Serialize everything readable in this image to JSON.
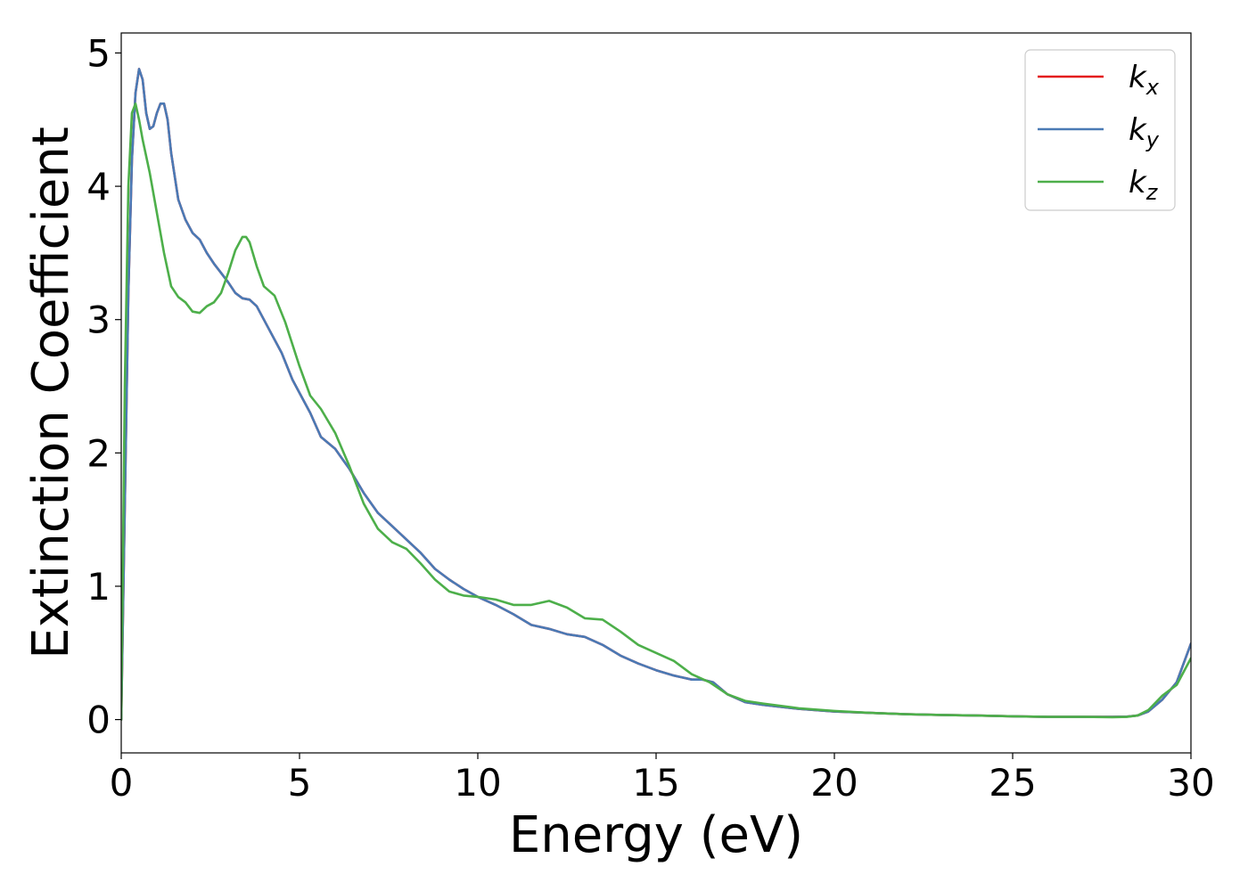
{
  "chart_data": {
    "type": "line",
    "xlabel": "Energy (eV)",
    "ylabel": "Extinction Coefficient",
    "xlim": [
      0,
      30
    ],
    "ylim": [
      -0.25,
      5.15
    ],
    "xticks": [
      "0",
      "5",
      "10",
      "15",
      "20",
      "25",
      "30"
    ],
    "yticks": [
      "0",
      "1",
      "2",
      "3",
      "4",
      "5"
    ],
    "grid": false,
    "legend_position": "top-right",
    "series": [
      {
        "name": "k",
        "sub": "x",
        "color": "#e41a1c",
        "x": [
          0,
          0.1,
          0.2,
          0.3,
          0.4,
          0.5,
          0.6,
          0.7,
          0.8,
          0.9,
          1.0,
          1.1,
          1.2,
          1.3,
          1.4,
          1.6,
          1.8,
          2.0,
          2.2,
          2.4,
          2.6,
          2.8,
          3.0,
          3.2,
          3.4,
          3.6,
          3.8,
          4.0,
          4.2,
          4.5,
          4.8,
          5.0,
          5.3,
          5.6,
          6.0,
          6.4,
          6.8,
          7.2,
          7.6,
          8.0,
          8.4,
          8.8,
          9.2,
          9.6,
          10.0,
          10.5,
          11.0,
          11.5,
          12.0,
          12.5,
          13.0,
          13.5,
          14.0,
          14.5,
          15.0,
          15.5,
          16.0,
          16.3,
          16.6,
          17.0,
          17.5,
          18.0,
          19.0,
          20.0,
          21.0,
          22.0,
          23.0,
          24.0,
          25.0,
          26.0,
          27.0,
          27.8,
          28.2,
          28.5,
          28.8,
          29.2,
          29.6,
          30.0
        ],
        "values": [
          0,
          1.6,
          3.2,
          4.2,
          4.7,
          4.88,
          4.8,
          4.55,
          4.43,
          4.45,
          4.55,
          4.62,
          4.62,
          4.5,
          4.25,
          3.9,
          3.75,
          3.65,
          3.6,
          3.5,
          3.42,
          3.35,
          3.28,
          3.2,
          3.16,
          3.15,
          3.1,
          3.0,
          2.9,
          2.75,
          2.55,
          2.45,
          2.3,
          2.12,
          2.03,
          1.88,
          1.7,
          1.55,
          1.45,
          1.35,
          1.25,
          1.13,
          1.05,
          0.98,
          0.92,
          0.86,
          0.79,
          0.71,
          0.68,
          0.64,
          0.62,
          0.56,
          0.48,
          0.42,
          0.37,
          0.33,
          0.3,
          0.3,
          0.28,
          0.19,
          0.13,
          0.11,
          0.08,
          0.06,
          0.05,
          0.04,
          0.035,
          0.03,
          0.025,
          0.02,
          0.02,
          0.02,
          0.022,
          0.03,
          0.06,
          0.15,
          0.28,
          0.57
        ]
      },
      {
        "name": "k",
        "sub": "y",
        "color": "#4a7ab5",
        "x": [
          0,
          0.1,
          0.2,
          0.3,
          0.4,
          0.5,
          0.6,
          0.7,
          0.8,
          0.9,
          1.0,
          1.1,
          1.2,
          1.3,
          1.4,
          1.6,
          1.8,
          2.0,
          2.2,
          2.4,
          2.6,
          2.8,
          3.0,
          3.2,
          3.4,
          3.6,
          3.8,
          4.0,
          4.2,
          4.5,
          4.8,
          5.0,
          5.3,
          5.6,
          6.0,
          6.4,
          6.8,
          7.2,
          7.6,
          8.0,
          8.4,
          8.8,
          9.2,
          9.6,
          10.0,
          10.5,
          11.0,
          11.5,
          12.0,
          12.5,
          13.0,
          13.5,
          14.0,
          14.5,
          15.0,
          15.5,
          16.0,
          16.3,
          16.6,
          17.0,
          17.5,
          18.0,
          19.0,
          20.0,
          21.0,
          22.0,
          23.0,
          24.0,
          25.0,
          26.0,
          27.0,
          27.8,
          28.2,
          28.5,
          28.8,
          29.2,
          29.6,
          30.0
        ],
        "values": [
          0,
          1.6,
          3.2,
          4.2,
          4.7,
          4.88,
          4.8,
          4.55,
          4.43,
          4.45,
          4.55,
          4.62,
          4.62,
          4.5,
          4.25,
          3.9,
          3.75,
          3.65,
          3.6,
          3.5,
          3.42,
          3.35,
          3.28,
          3.2,
          3.16,
          3.15,
          3.1,
          3.0,
          2.9,
          2.75,
          2.55,
          2.45,
          2.3,
          2.12,
          2.03,
          1.88,
          1.7,
          1.55,
          1.45,
          1.35,
          1.25,
          1.13,
          1.05,
          0.98,
          0.92,
          0.86,
          0.79,
          0.71,
          0.68,
          0.64,
          0.62,
          0.56,
          0.48,
          0.42,
          0.37,
          0.33,
          0.3,
          0.3,
          0.28,
          0.19,
          0.13,
          0.11,
          0.08,
          0.06,
          0.05,
          0.04,
          0.035,
          0.03,
          0.025,
          0.02,
          0.02,
          0.02,
          0.022,
          0.03,
          0.06,
          0.15,
          0.28,
          0.57
        ]
      },
      {
        "name": "k",
        "sub": "z",
        "color": "#4daf4a",
        "x": [
          0,
          0.1,
          0.2,
          0.3,
          0.4,
          0.5,
          0.6,
          0.8,
          1.0,
          1.2,
          1.4,
          1.6,
          1.8,
          2.0,
          2.2,
          2.4,
          2.6,
          2.8,
          3.0,
          3.2,
          3.4,
          3.5,
          3.6,
          3.8,
          4.0,
          4.3,
          4.6,
          5.0,
          5.3,
          5.6,
          6.0,
          6.4,
          6.8,
          7.2,
          7.6,
          8.0,
          8.4,
          8.8,
          9.2,
          9.6,
          10.0,
          10.5,
          11.0,
          11.5,
          12.0,
          12.5,
          13.0,
          13.5,
          14.0,
          14.5,
          15.0,
          15.5,
          16.0,
          16.5,
          17.0,
          17.5,
          18.0,
          19.0,
          20.0,
          21.0,
          22.0,
          23.0,
          24.0,
          25.0,
          26.0,
          27.0,
          27.8,
          28.2,
          28.5,
          28.8,
          29.2,
          29.6,
          30.0
        ],
        "values": [
          0,
          2.5,
          4.0,
          4.55,
          4.62,
          4.5,
          4.35,
          4.1,
          3.8,
          3.5,
          3.25,
          3.17,
          3.13,
          3.06,
          3.05,
          3.1,
          3.13,
          3.2,
          3.35,
          3.52,
          3.62,
          3.62,
          3.58,
          3.4,
          3.25,
          3.18,
          2.98,
          2.65,
          2.43,
          2.33,
          2.15,
          1.9,
          1.62,
          1.43,
          1.33,
          1.28,
          1.17,
          1.05,
          0.96,
          0.93,
          0.92,
          0.9,
          0.86,
          0.86,
          0.89,
          0.84,
          0.76,
          0.75,
          0.66,
          0.56,
          0.5,
          0.44,
          0.34,
          0.28,
          0.19,
          0.14,
          0.12,
          0.085,
          0.065,
          0.05,
          0.04,
          0.035,
          0.03,
          0.025,
          0.02,
          0.02,
          0.018,
          0.02,
          0.03,
          0.07,
          0.18,
          0.26,
          0.46
        ]
      }
    ]
  }
}
